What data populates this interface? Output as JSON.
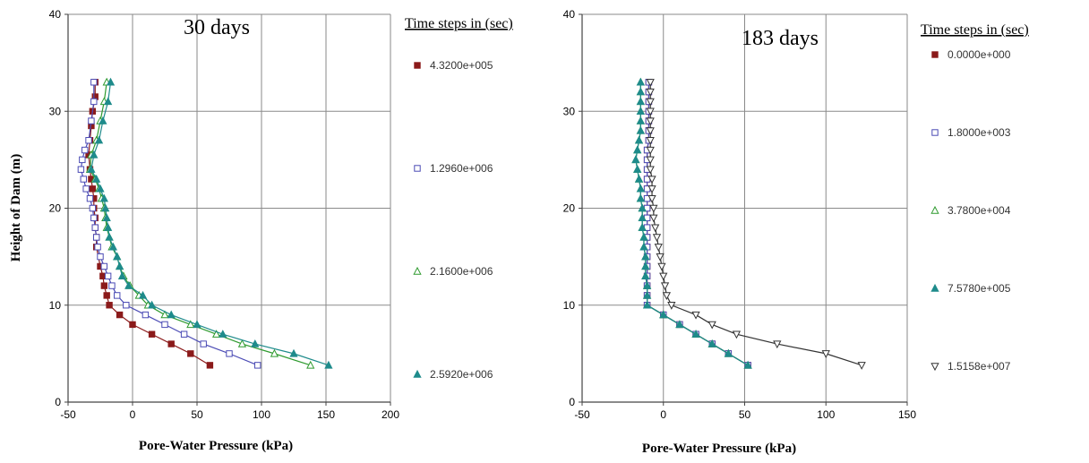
{
  "chart_data": [
    {
      "type": "line",
      "annotation": "30 days",
      "xlabel": "Pore-Water Pressure (kPa)",
      "ylabel": "Height of Dam (m)",
      "xlim": [
        -50,
        200
      ],
      "ylim": [
        0,
        40
      ],
      "xticks": [
        -50,
        0,
        50,
        100,
        150,
        200
      ],
      "yticks": [
        0,
        10,
        20,
        30,
        40
      ],
      "grid": true,
      "legend_title": "Time steps in (sec)",
      "legend_position": "right",
      "series": [
        {
          "name": "4.3200e+005",
          "marker": "square-filled",
          "color": "#8b1a1a",
          "points": [
            [
              -29,
              33
            ],
            [
              -29,
              31.5
            ],
            [
              -31,
              30
            ],
            [
              -32,
              28.5
            ],
            [
              -33,
              27
            ],
            [
              -34,
              25.5
            ],
            [
              -33,
              24
            ],
            [
              -32,
              23
            ],
            [
              -31,
              22
            ],
            [
              -30,
              21
            ],
            [
              -30,
              20
            ],
            [
              -29,
              19
            ],
            [
              -29,
              18
            ],
            [
              -28,
              17
            ],
            [
              -28,
              16
            ],
            [
              -25,
              14
            ],
            [
              -23,
              13
            ],
            [
              -22,
              12
            ],
            [
              -20,
              11
            ],
            [
              -18,
              10
            ],
            [
              -10,
              9
            ],
            [
              0,
              8
            ],
            [
              15,
              7
            ],
            [
              30,
              6
            ],
            [
              45,
              5
            ],
            [
              60,
              3.8
            ]
          ]
        },
        {
          "name": "1.2960e+006",
          "marker": "square-open",
          "color": "#4b4bb5",
          "points": [
            [
              -30,
              33
            ],
            [
              -30,
              31
            ],
            [
              -32,
              29
            ],
            [
              -34,
              27
            ],
            [
              -37,
              26
            ],
            [
              -39,
              25
            ],
            [
              -40,
              24
            ],
            [
              -38,
              23
            ],
            [
              -36,
              22
            ],
            [
              -33,
              21
            ],
            [
              -31,
              20
            ],
            [
              -30,
              19
            ],
            [
              -29,
              18
            ],
            [
              -28,
              17
            ],
            [
              -27,
              16
            ],
            [
              -25,
              15
            ],
            [
              -22,
              14
            ],
            [
              -19,
              13
            ],
            [
              -16,
              12
            ],
            [
              -12,
              11
            ],
            [
              -5,
              10
            ],
            [
              10,
              9
            ],
            [
              25,
              8
            ],
            [
              40,
              7
            ],
            [
              55,
              6
            ],
            [
              75,
              5
            ],
            [
              97,
              3.8
            ]
          ]
        },
        {
          "name": "2.1600e+006",
          "marker": "triangle-open",
          "color": "#2e9a2e",
          "points": [
            [
              -20,
              33
            ],
            [
              -22,
              31
            ],
            [
              -25,
              29
            ],
            [
              -28,
              27
            ],
            [
              -32,
              25.5
            ],
            [
              -33,
              24
            ],
            [
              -29,
              23
            ],
            [
              -26,
              22
            ],
            [
              -24,
              21
            ],
            [
              -22,
              20
            ],
            [
              -21,
              19
            ],
            [
              -20,
              18
            ],
            [
              -18,
              17
            ],
            [
              -16,
              16
            ],
            [
              -12,
              15
            ],
            [
              -10,
              14
            ],
            [
              -7,
              13
            ],
            [
              -2,
              12
            ],
            [
              5,
              11
            ],
            [
              12,
              10
            ],
            [
              25,
              9
            ],
            [
              45,
              8
            ],
            [
              65,
              7
            ],
            [
              85,
              6
            ],
            [
              110,
              5
            ],
            [
              138,
              3.8
            ]
          ]
        },
        {
          "name": "2.5920e+006",
          "marker": "triangle-filled",
          "color": "#1e8b8b",
          "points": [
            [
              -17,
              33
            ],
            [
              -19,
              31
            ],
            [
              -23,
              29
            ],
            [
              -26,
              27
            ],
            [
              -30,
              25.5
            ],
            [
              -32,
              24
            ],
            [
              -28,
              23
            ],
            [
              -25,
              22
            ],
            [
              -22,
              21
            ],
            [
              -21,
              20
            ],
            [
              -20,
              19
            ],
            [
              -19,
              18
            ],
            [
              -18,
              17
            ],
            [
              -15,
              16
            ],
            [
              -12,
              15
            ],
            [
              -10,
              14
            ],
            [
              -8,
              13
            ],
            [
              -3,
              12
            ],
            [
              8,
              11
            ],
            [
              15,
              10
            ],
            [
              30,
              9
            ],
            [
              50,
              8
            ],
            [
              70,
              7
            ],
            [
              95,
              6
            ],
            [
              125,
              5
            ],
            [
              152,
              3.8
            ]
          ]
        }
      ]
    },
    {
      "type": "line",
      "annotation": "183 days",
      "xlabel": "Pore-Water Pressure (kPa)",
      "ylabel": "",
      "xlim": [
        -50,
        150
      ],
      "ylim": [
        0,
        40
      ],
      "xticks": [
        -50,
        0,
        50,
        100,
        150
      ],
      "yticks": [
        0,
        10,
        20,
        30,
        40
      ],
      "grid": true,
      "legend_title": "Time steps in (sec)",
      "legend_position": "right",
      "series": [
        {
          "name": "0.0000e+000",
          "marker": "square-filled",
          "color": "#8b1a1a",
          "points": [
            [
              -9,
              33
            ],
            [
              -9,
              32
            ],
            [
              -9,
              31
            ],
            [
              -9,
              30
            ],
            [
              -9,
              29
            ],
            [
              -9,
              28
            ],
            [
              -9,
              27
            ],
            [
              -10,
              26
            ],
            [
              -10,
              25
            ],
            [
              -10,
              24
            ],
            [
              -10,
              23
            ],
            [
              -10,
              22
            ],
            [
              -10,
              21
            ],
            [
              -10,
              20
            ],
            [
              -10,
              19
            ],
            [
              -10,
              18
            ],
            [
              -10,
              17
            ],
            [
              -10,
              16
            ],
            [
              -10,
              15
            ],
            [
              -10,
              14
            ],
            [
              -10,
              13
            ],
            [
              -10,
              12
            ],
            [
              -10,
              11
            ],
            [
              -10,
              10
            ],
            [
              0,
              9
            ],
            [
              10,
              8
            ],
            [
              20,
              7
            ],
            [
              30,
              6
            ],
            [
              40,
              5
            ],
            [
              52,
              3.8
            ]
          ]
        },
        {
          "name": "1.8000e+003",
          "marker": "square-open",
          "color": "#4b4bb5",
          "points": [
            [
              -9,
              33
            ],
            [
              -9,
              32
            ],
            [
              -9,
              31
            ],
            [
              -9,
              30
            ],
            [
              -9,
              29
            ],
            [
              -9,
              28
            ],
            [
              -9,
              27
            ],
            [
              -10,
              26
            ],
            [
              -10,
              25
            ],
            [
              -10,
              24
            ],
            [
              -10,
              23
            ],
            [
              -10,
              22
            ],
            [
              -10,
              21
            ],
            [
              -10,
              20
            ],
            [
              -10,
              19
            ],
            [
              -10,
              18
            ],
            [
              -10,
              17
            ],
            [
              -10,
              16
            ],
            [
              -10,
              15
            ],
            [
              -10,
              14
            ],
            [
              -10,
              13
            ],
            [
              -10,
              12
            ],
            [
              -10,
              11
            ],
            [
              -10,
              10
            ],
            [
              0,
              9
            ],
            [
              10,
              8
            ],
            [
              20,
              7
            ],
            [
              30,
              6
            ],
            [
              40,
              5
            ],
            [
              52,
              3.8
            ]
          ]
        },
        {
          "name": "3.7800e+004",
          "marker": "triangle-open",
          "color": "#2e9a2e",
          "points": [
            [
              -14,
              33
            ],
            [
              -14,
              32
            ],
            [
              -14,
              31
            ],
            [
              -14,
              30
            ],
            [
              -14,
              29
            ],
            [
              -14,
              28
            ],
            [
              -15,
              27
            ],
            [
              -16,
              26
            ],
            [
              -17,
              25
            ],
            [
              -16,
              24
            ],
            [
              -15,
              23
            ],
            [
              -14,
              22
            ],
            [
              -14,
              21
            ],
            [
              -13,
              20
            ],
            [
              -13,
              19
            ],
            [
              -13,
              18
            ],
            [
              -12,
              17
            ],
            [
              -12,
              16
            ],
            [
              -11,
              15
            ],
            [
              -11,
              14
            ],
            [
              -11,
              13
            ],
            [
              -10,
              12
            ],
            [
              -10,
              11
            ],
            [
              -10,
              10
            ],
            [
              0,
              9
            ],
            [
              10,
              8
            ],
            [
              20,
              7
            ],
            [
              30,
              6
            ],
            [
              40,
              5
            ],
            [
              52,
              3.8
            ]
          ]
        },
        {
          "name": "7.5780e+005",
          "marker": "triangle-filled",
          "color": "#1e8b8b",
          "points": [
            [
              -14,
              33
            ],
            [
              -14,
              32
            ],
            [
              -14,
              31
            ],
            [
              -14,
              30
            ],
            [
              -14,
              29
            ],
            [
              -14,
              28
            ],
            [
              -15,
              27
            ],
            [
              -16,
              26
            ],
            [
              -17,
              25
            ],
            [
              -16,
              24
            ],
            [
              -15,
              23
            ],
            [
              -14,
              22
            ],
            [
              -14,
              21
            ],
            [
              -13,
              20
            ],
            [
              -13,
              19
            ],
            [
              -13,
              18
            ],
            [
              -12,
              17
            ],
            [
              -12,
              16
            ],
            [
              -11,
              15
            ],
            [
              -11,
              14
            ],
            [
              -11,
              13
            ],
            [
              -10,
              12
            ],
            [
              -10,
              11
            ],
            [
              -10,
              10
            ],
            [
              0,
              9
            ],
            [
              10,
              8
            ],
            [
              20,
              7
            ],
            [
              30,
              6
            ],
            [
              40,
              5
            ],
            [
              52,
              3.8
            ]
          ]
        },
        {
          "name": "1.5158e+007",
          "marker": "triangle-down-open",
          "color": "#333333",
          "points": [
            [
              -8,
              33
            ],
            [
              -8,
              32
            ],
            [
              -8,
              31
            ],
            [
              -8,
              30
            ],
            [
              -8,
              29
            ],
            [
              -8,
              28
            ],
            [
              -8,
              27
            ],
            [
              -8,
              26
            ],
            [
              -8,
              25
            ],
            [
              -8,
              24
            ],
            [
              -7,
              23
            ],
            [
              -7,
              22
            ],
            [
              -7,
              21
            ],
            [
              -6,
              20
            ],
            [
              -6,
              19
            ],
            [
              -5,
              18
            ],
            [
              -4,
              17
            ],
            [
              -3,
              16
            ],
            [
              -2,
              15
            ],
            [
              -1,
              14
            ],
            [
              0,
              13
            ],
            [
              1,
              12
            ],
            [
              2,
              11
            ],
            [
              5,
              10
            ],
            [
              20,
              9
            ],
            [
              30,
              8
            ],
            [
              45,
              7
            ],
            [
              70,
              6
            ],
            [
              100,
              5
            ],
            [
              122,
              3.8
            ]
          ]
        }
      ]
    }
  ]
}
